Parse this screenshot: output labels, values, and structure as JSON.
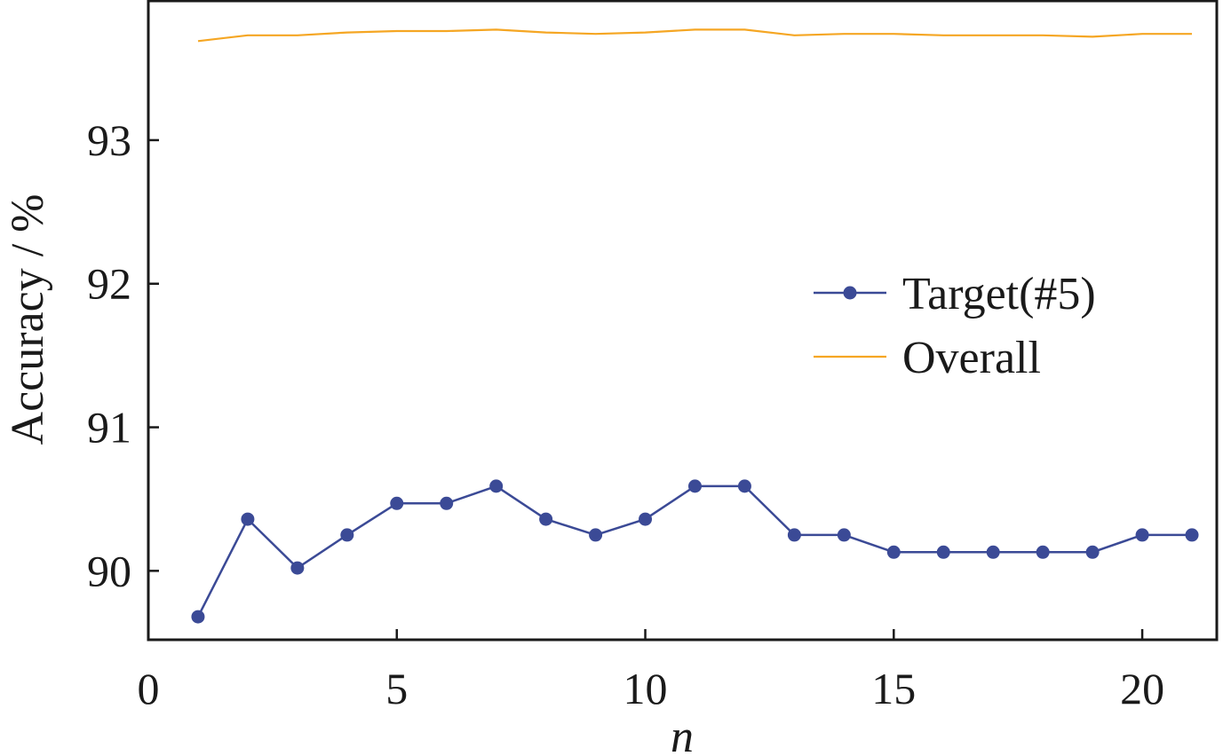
{
  "chart_data": {
    "type": "line",
    "xlabel": "n",
    "ylabel": "Accuracy / %",
    "xlim": [
      0,
      21.5
    ],
    "ylim": [
      89.52,
      93.97
    ],
    "xticks": [
      0,
      5,
      10,
      15,
      20
    ],
    "yticks": [
      90,
      91,
      92,
      93
    ],
    "x": [
      1,
      2,
      3,
      4,
      5,
      6,
      7,
      8,
      9,
      10,
      11,
      12,
      13,
      14,
      15,
      16,
      17,
      18,
      19,
      20,
      21
    ],
    "series": [
      {
        "name": "Target(#5)",
        "color": "#3b4a96",
        "marker": "circle",
        "values": [
          89.68,
          90.36,
          90.02,
          90.25,
          90.47,
          90.47,
          90.59,
          90.36,
          90.25,
          90.36,
          90.59,
          90.59,
          90.25,
          90.25,
          90.13,
          90.13,
          90.13,
          90.13,
          90.13,
          90.25,
          90.25
        ]
      },
      {
        "name": "Overall",
        "color": "#f5a623",
        "marker": "none",
        "values": [
          93.69,
          93.73,
          93.73,
          93.75,
          93.76,
          93.76,
          93.77,
          93.75,
          93.74,
          93.75,
          93.77,
          93.77,
          93.73,
          93.74,
          93.74,
          93.73,
          93.73,
          93.73,
          93.72,
          93.74,
          93.74
        ]
      }
    ],
    "legend": "center-right",
    "grid": false
  }
}
